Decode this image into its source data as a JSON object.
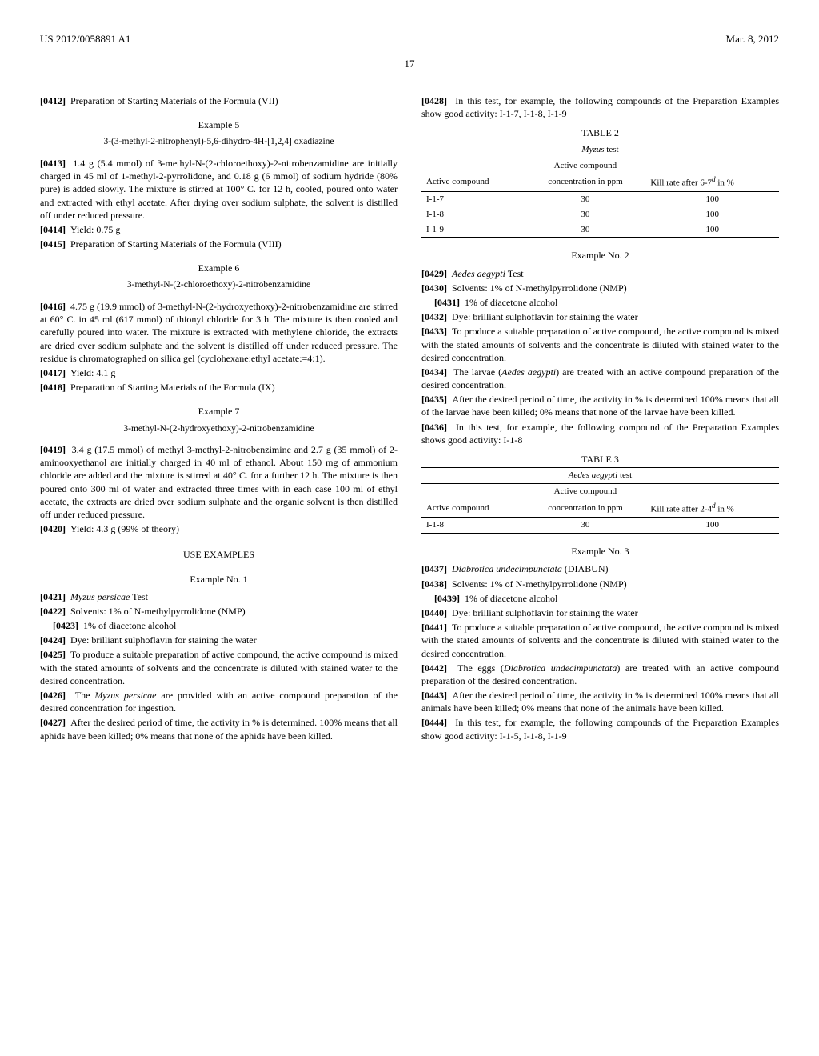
{
  "header": {
    "pub_number": "US 2012/0058891 A1",
    "date": "Mar. 8, 2012"
  },
  "page_number": "17",
  "left": {
    "p0412": "Preparation of Starting Materials of the Formula (VII)",
    "ex5": "Example 5",
    "ex5_compound": "3-(3-methyl-2-nitrophenyl)-5,6-dihydro-4H-[1,2,4] oxadiazine",
    "p0413": "1.4 g (5.4 mmol) of 3-methyl-N-(2-chloroethoxy)-2-nitrobenzamidine are initially charged in 45 ml of 1-methyl-2-pyrrolidone, and 0.18 g (6 mmol) of sodium hydride (80% pure) is added slowly. The mixture is stirred at 100° C. for 12 h, cooled, poured onto water and extracted with ethyl acetate. After drying over sodium sulphate, the solvent is distilled off under reduced pressure.",
    "p0414": "Yield: 0.75 g",
    "p0415": "Preparation of Starting Materials of the Formula (VIII)",
    "ex6": "Example 6",
    "ex6_compound": "3-methyl-N-(2-chloroethoxy)-2-nitrobenzamidine",
    "p0416": "4.75 g (19.9 mmol) of 3-methyl-N-(2-hydroxyethoxy)-2-nitrobenzamidine are stirred at 60° C. in 45 ml (617 mmol) of thionyl chloride for 3 h. The mixture is then cooled and carefully poured into water. The mixture is extracted with methylene chloride, the extracts are dried over sodium sulphate and the solvent is distilled off under reduced pressure. The residue is chromatographed on silica gel (cyclohexane:ethyl acetate:=4:1).",
    "p0417": "Yield: 4.1 g",
    "p0418": "Preparation of Starting Materials of the Formula (IX)",
    "ex7": "Example 7",
    "ex7_compound": "3-methyl-N-(2-hydroxyethoxy)-2-nitrobenzamidine",
    "p0419": "3.4 g (17.5 mmol) of methyl 3-methyl-2-nitrobenzimine and 2.7 g (35 mmol) of 2-aminooxyethanol are initially charged in 40 ml of ethanol. About 150 mg of ammonium chloride are added and the mixture is stirred at 40° C. for a further 12 h. The mixture is then poured onto 300 ml of water and extracted three times with in each case 100 ml of ethyl acetate, the extracts are dried over sodium sulphate and the organic solvent is then distilled off under reduced pressure.",
    "p0420": "Yield: 4.3 g (99% of theory)",
    "use_examples": "USE EXAMPLES",
    "use_ex1": "Example No. 1",
    "p0421_title": "Myzus persicae",
    "p0421_suffix": " Test",
    "p0422": "Solvents: 1% of N-methylpyrrolidone (NMP)",
    "p0423": "1% of diacetone alcohol",
    "p0424": "Dye: brilliant sulphoflavin for staining the water",
    "p0425": "To produce a suitable preparation of active compound, the active compound is mixed with the stated amounts of solvents and the concentrate is diluted with stained water to the desired concentration.",
    "p0426_a": "The ",
    "p0426_i": "Myzus persicae",
    "p0426_b": " are provided with an active compound preparation of the desired concentration for ingestion.",
    "p0427": "After the desired period of time, the activity in % is determined. 100% means that all aphids have been killed; 0% means that none of the aphids have been killed."
  },
  "right": {
    "p0428": "In this test, for example, the following compounds of the Preparation Examples show good activity: I-1-7, I-1-8, I-1-9",
    "table2": {
      "caption": "TABLE 2",
      "test_name": "Myzus",
      "test_suffix": " test",
      "col1": "Active compound",
      "col2a": "Active compound",
      "col2b": "concentration in ppm",
      "col3a": "Kill rate after 6-7",
      "col3b": " in %",
      "rows": [
        {
          "c": "I-1-7",
          "ppm": "30",
          "kill": "100"
        },
        {
          "c": "I-1-8",
          "ppm": "30",
          "kill": "100"
        },
        {
          "c": "I-1-9",
          "ppm": "30",
          "kill": "100"
        }
      ]
    },
    "use_ex2": "Example No. 2",
    "p0429_i": "Aedes aegypti",
    "p0429_suffix": " Test",
    "p0430": "Solvents: 1% of N-methylpyrrolidone (NMP)",
    "p0431": "1% of diacetone alcohol",
    "p0432": "Dye: brilliant sulphoflavin for staining the water",
    "p0433": "To produce a suitable preparation of active compound, the active compound is mixed with the stated amounts of solvents and the concentrate is diluted with stained water to the desired concentration.",
    "p0434_a": "The larvae (",
    "p0434_i": "Aedes aegypti",
    "p0434_b": ") are treated with an active compound preparation of the desired concentration.",
    "p0435": "After the desired period of time, the activity in % is determined 100% means that all of the larvae have been killed; 0% means that none of the larvae have been killed.",
    "p0436": "In this test, for example, the following compound of the Preparation Examples shows good activity: I-1-8",
    "table3": {
      "caption": "TABLE 3",
      "test_name": "Aedes aegypti",
      "test_suffix": " test",
      "col1": "Active compound",
      "col2a": "Active compound",
      "col2b": "concentration in ppm",
      "col3a": "Kill rate after 2-4",
      "col3b": " in %",
      "rows": [
        {
          "c": "I-1-8",
          "ppm": "30",
          "kill": "100"
        }
      ]
    },
    "use_ex3": "Example No. 3",
    "p0437_i": "Diabrotica undecimpunctata",
    "p0437_suffix": " (DIABUN)",
    "p0438": "Solvents: 1% of N-methylpyrrolidone (NMP)",
    "p0439": "1% of diacetone alcohol",
    "p0440": "Dye: brilliant sulphoflavin for staining the water",
    "p0441": "To produce a suitable preparation of active compound, the active compound is mixed with the stated amounts of solvents and the concentrate is diluted with stained water to the desired concentration.",
    "p0442_a": "The eggs (",
    "p0442_i": "Diabrotica undecimpunctata",
    "p0442_b": ") are treated with an active compound preparation of the desired concentration.",
    "p0443": "After the desired period of time, the activity in % is determined 100% means that all animals have been killed; 0% means that none of the animals have been killed.",
    "p0444": "In this test, for example, the following compounds of the Preparation Examples show good activity: I-1-5, I-1-8, I-1-9"
  },
  "nums": {
    "n0412": "[0412]",
    "n0413": "[0413]",
    "n0414": "[0414]",
    "n0415": "[0415]",
    "n0416": "[0416]",
    "n0417": "[0417]",
    "n0418": "[0418]",
    "n0419": "[0419]",
    "n0420": "[0420]",
    "n0421": "[0421]",
    "n0422": "[0422]",
    "n0423": "[0423]",
    "n0424": "[0424]",
    "n0425": "[0425]",
    "n0426": "[0426]",
    "n0427": "[0427]",
    "n0428": "[0428]",
    "n0429": "[0429]",
    "n0430": "[0430]",
    "n0431": "[0431]",
    "n0432": "[0432]",
    "n0433": "[0433]",
    "n0434": "[0434]",
    "n0435": "[0435]",
    "n0436": "[0436]",
    "n0437": "[0437]",
    "n0438": "[0438]",
    "n0439": "[0439]",
    "n0440": "[0440]",
    "n0441": "[0441]",
    "n0442": "[0442]",
    "n0443": "[0443]",
    "n0444": "[0444]"
  },
  "sup_d": "d"
}
